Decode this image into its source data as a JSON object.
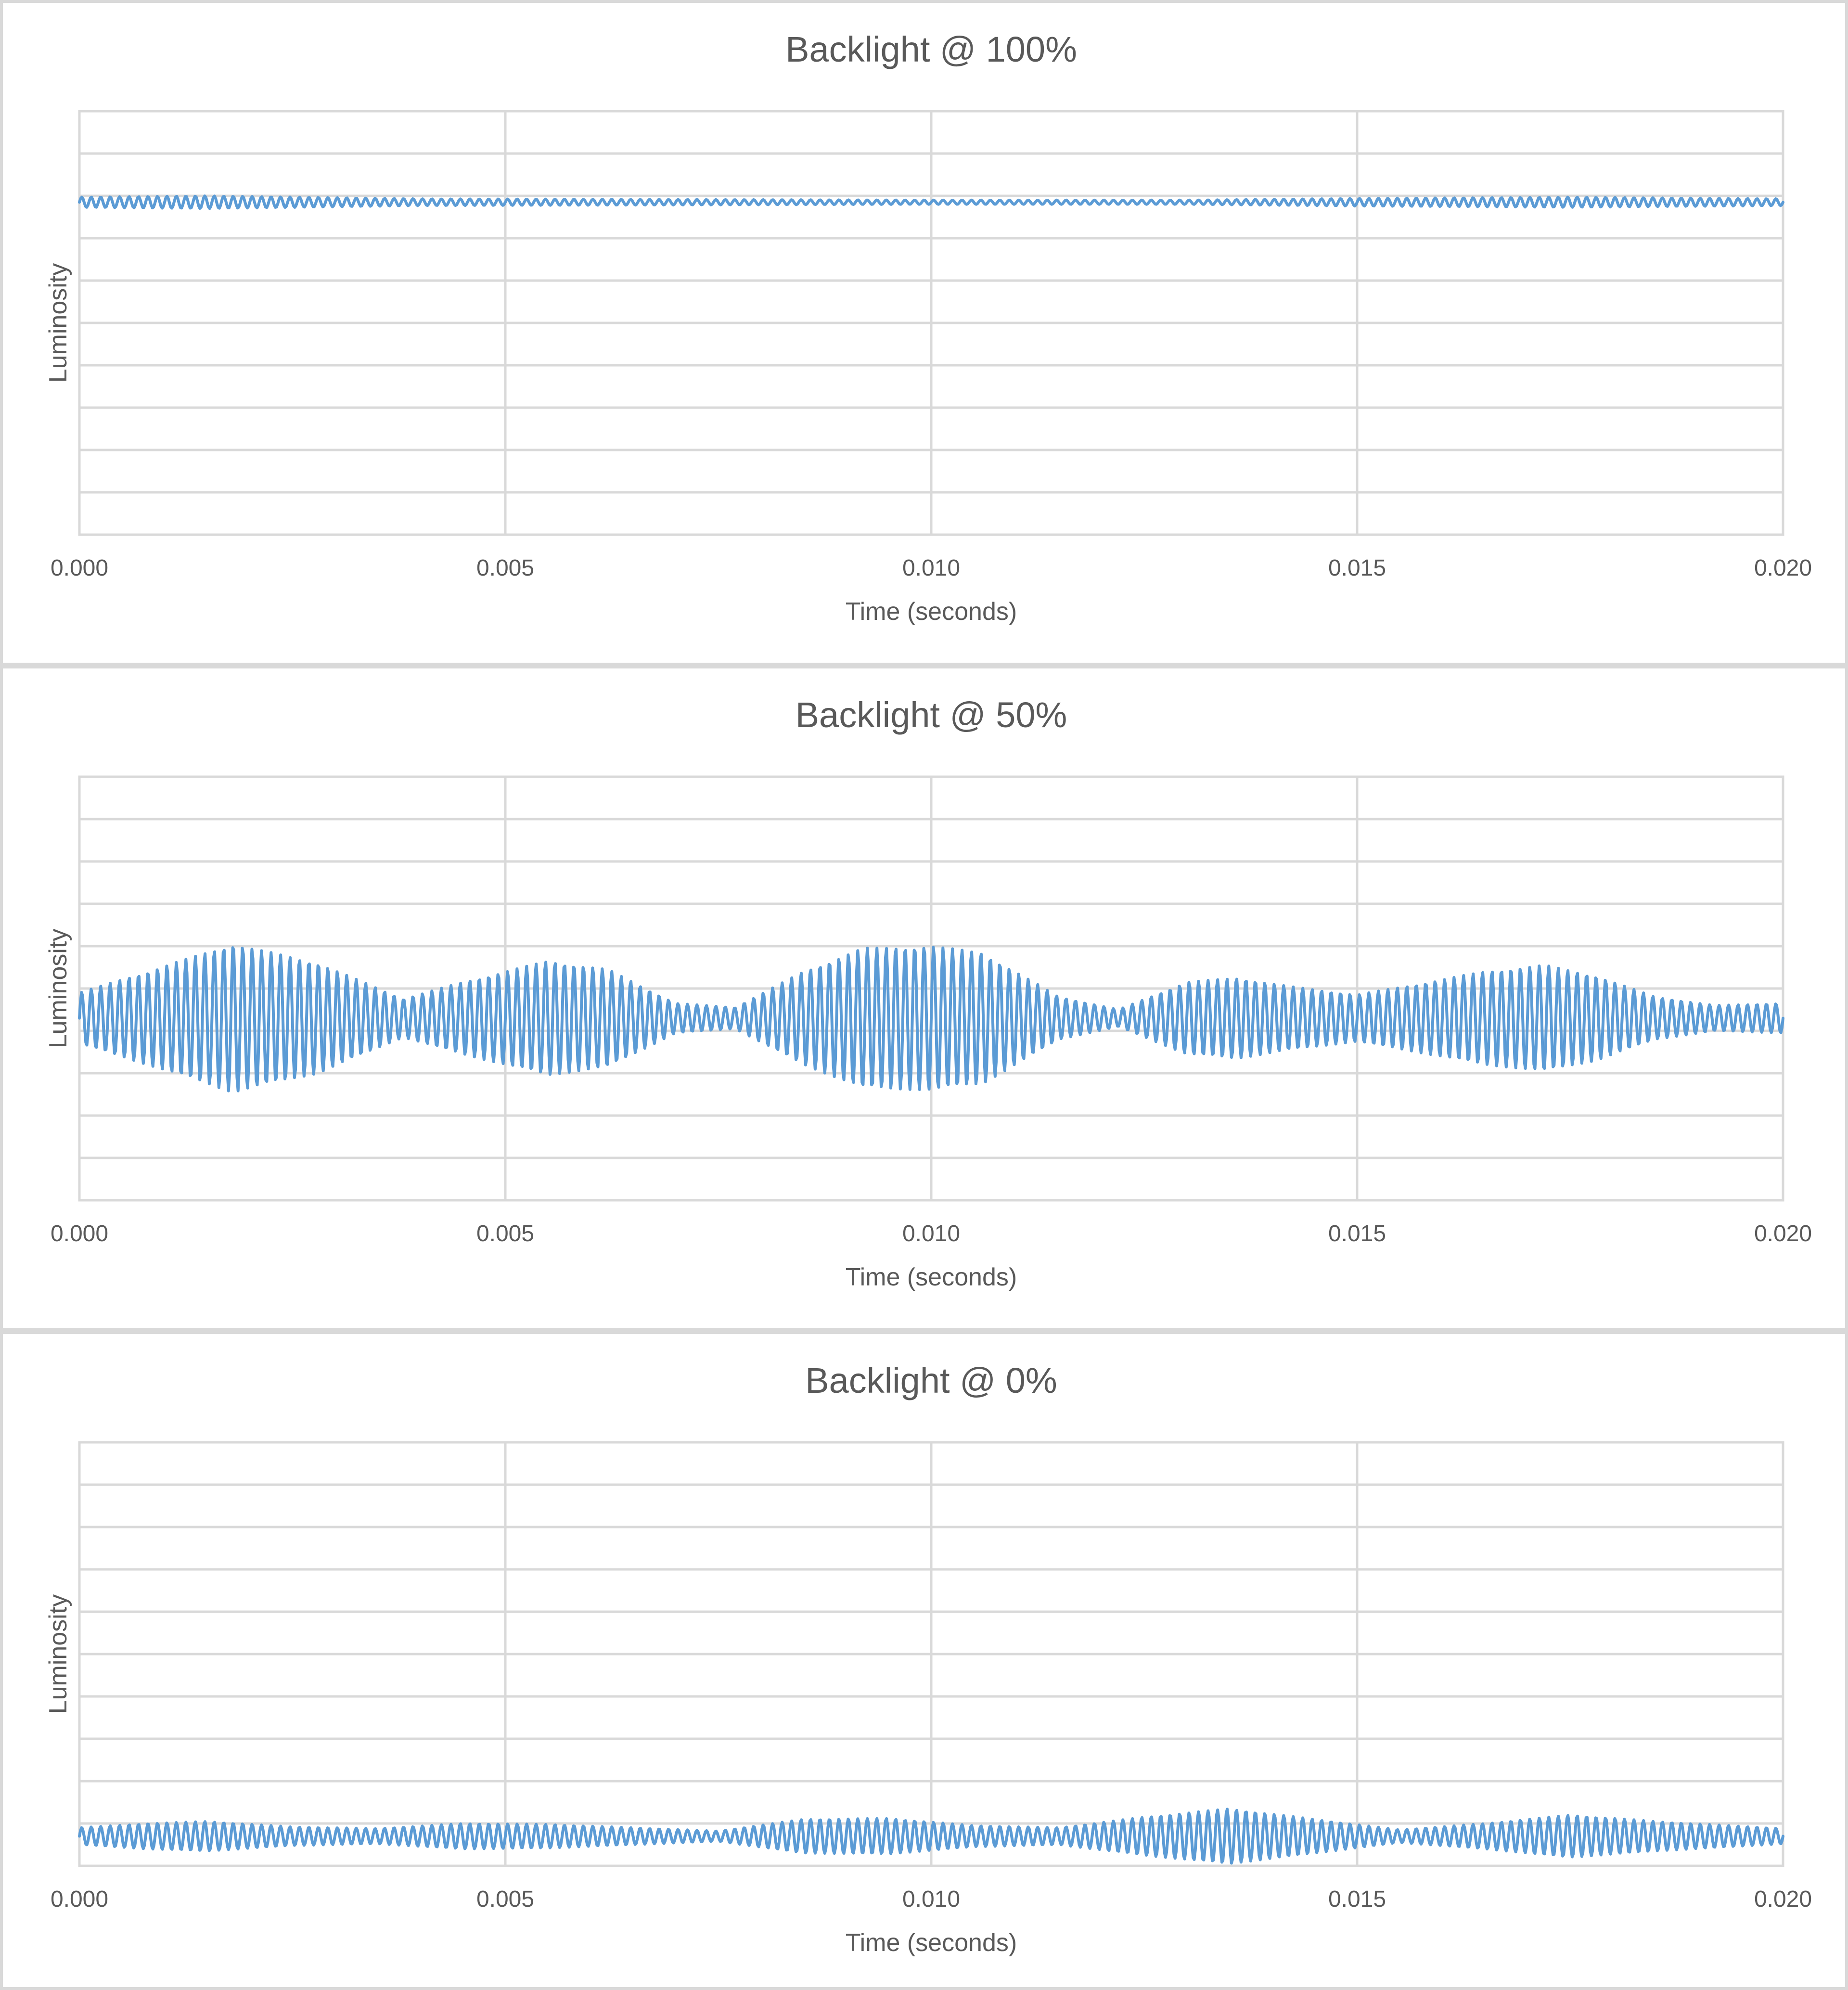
{
  "chart_data": [
    {
      "type": "line",
      "title": "Backlight @ 100%",
      "xlabel": "Time (seconds)",
      "ylabel": "Luminosity",
      "xlim": [
        0,
        0.02
      ],
      "ylim": [
        0,
        10
      ],
      "x_ticks": [
        "0.000",
        "0.005",
        "0.010",
        "0.015",
        "0.020"
      ],
      "y_ticks_labeled": false,
      "grid": true,
      "series_color": "#5b9bd5",
      "signal": {
        "baseline": 7.85,
        "envelope_t": [
          0,
          0.0015,
          0.004,
          0.008,
          0.01,
          0.013,
          0.015,
          0.0175,
          0.02
        ],
        "envelope_a": [
          0.12,
          0.15,
          0.08,
          0.06,
          0.05,
          0.05,
          0.09,
          0.12,
          0.08
        ],
        "freq_hz": 9000,
        "samples": 1400
      }
    },
    {
      "type": "line",
      "title": "Backlight @ 50%",
      "xlabel": "Time (seconds)",
      "ylabel": "Luminosity",
      "xlim": [
        0,
        0.02
      ],
      "ylim": [
        0,
        10
      ],
      "x_ticks": [
        "0.000",
        "0.005",
        "0.010",
        "0.015",
        "0.020"
      ],
      "y_ticks_labeled": false,
      "grid": true,
      "series_color": "#5b9bd5",
      "signal": {
        "baseline": 4.3,
        "envelope_t": [
          0,
          0.0008,
          0.0018,
          0.0028,
          0.0038,
          0.0045,
          0.0055,
          0.0062,
          0.007,
          0.0077,
          0.0085,
          0.0092,
          0.01,
          0.0106,
          0.0115,
          0.0122,
          0.013,
          0.0136,
          0.0142,
          0.015,
          0.0157,
          0.0165,
          0.0172,
          0.0178,
          0.0185,
          0.0192,
          0.02
        ],
        "envelope_a": [
          0.6,
          1.1,
          1.75,
          1.3,
          0.45,
          0.85,
          1.35,
          1.15,
          0.35,
          0.25,
          1.1,
          1.65,
          1.7,
          1.55,
          0.5,
          0.2,
          0.85,
          0.95,
          0.75,
          0.55,
          0.8,
          1.1,
          1.25,
          1.0,
          0.5,
          0.3,
          0.35
        ],
        "freq_hz": 9000,
        "samples": 1600
      }
    },
    {
      "type": "line",
      "title": "Backlight @ 0%",
      "xlabel": "Time (seconds)",
      "ylabel": "Luminosity",
      "xlim": [
        0,
        0.02
      ],
      "ylim": [
        0,
        10
      ],
      "x_ticks": [
        "0.000",
        "0.005",
        "0.010",
        "0.015",
        "0.020"
      ],
      "y_ticks_labeled": false,
      "grid": true,
      "series_color": "#5b9bd5",
      "signal": {
        "baseline": 0.7,
        "envelope_t": [
          0,
          0.0008,
          0.0015,
          0.0025,
          0.0035,
          0.0045,
          0.0055,
          0.0065,
          0.0075,
          0.0085,
          0.0095,
          0.0105,
          0.0115,
          0.0125,
          0.0135,
          0.0145,
          0.0155,
          0.0165,
          0.0175,
          0.0185,
          0.02
        ],
        "envelope_a": [
          0.2,
          0.3,
          0.35,
          0.22,
          0.18,
          0.3,
          0.28,
          0.2,
          0.12,
          0.4,
          0.42,
          0.25,
          0.2,
          0.45,
          0.65,
          0.4,
          0.15,
          0.3,
          0.5,
          0.35,
          0.18
        ],
        "freq_hz": 9000,
        "samples": 1600
      }
    }
  ]
}
